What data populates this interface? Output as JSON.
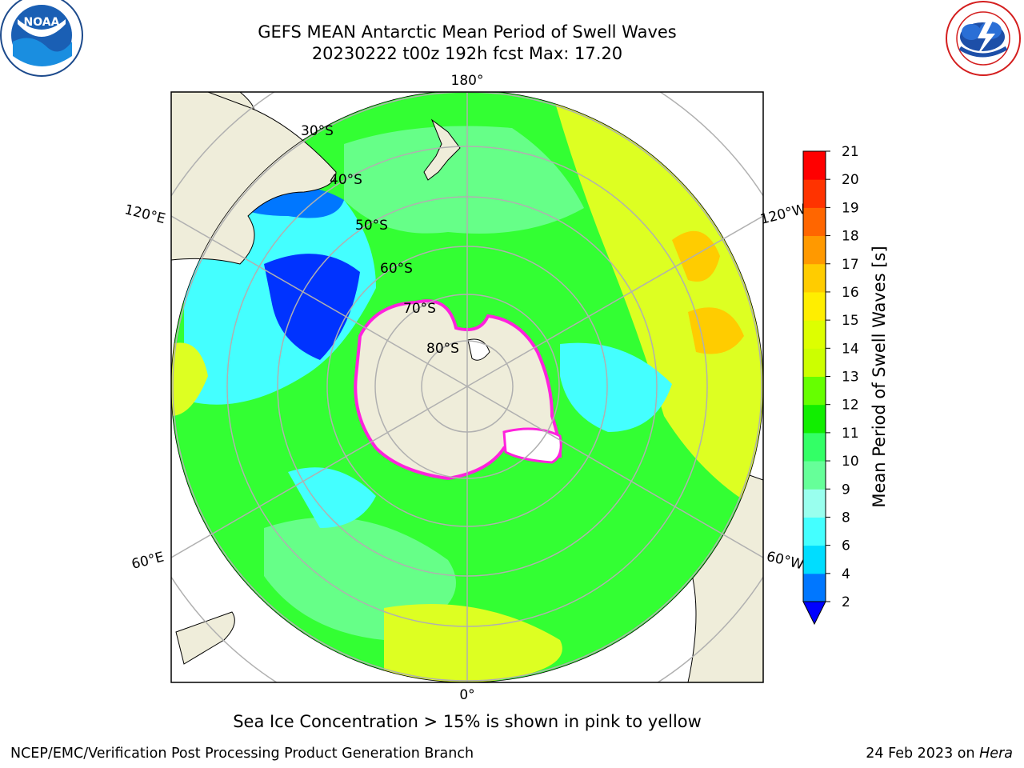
{
  "title": {
    "line1": "GEFS MEAN Antarctic Mean Period of Swell Waves",
    "line2": "20230222 t00z 192h fcst   Max: 17.20"
  },
  "logos": {
    "left": {
      "icon": "noaa-logo",
      "text": "NOAA"
    },
    "right": {
      "icon": "nws-logo",
      "text": "NATIONAL WEATHER SERVICE"
    }
  },
  "map": {
    "projection": "south-polar-stereographic",
    "longitude_labels": {
      "top": "180°",
      "bottom": "0°",
      "upper_left": "120°E",
      "upper_right": "120°W",
      "lower_left": "60°E",
      "lower_right": "60°W"
    },
    "latitude_labels": [
      "30°S",
      "40°S",
      "50°S",
      "60°S",
      "70°S",
      "80°S"
    ],
    "colors": {
      "ocean_field": "#33ff33",
      "land": "#efedda",
      "sea_ice_edge": "#ff00ff",
      "grid": "#b0b0b0"
    }
  },
  "colorbar": {
    "label": "Mean Period of Swell Waves [s]",
    "ticks": [
      "2",
      "4",
      "6",
      "8",
      "9",
      "10",
      "11",
      "12",
      "13",
      "14",
      "15",
      "16",
      "17",
      "18",
      "19",
      "20",
      "21"
    ],
    "colors": [
      "#0000ff",
      "#0077ff",
      "#00ddff",
      "#44ffff",
      "#99ffee",
      "#66ff99",
      "#33ff66",
      "#11ee00",
      "#66ff00",
      "#ccff00",
      "#ddff00",
      "#ffee00",
      "#ffcc00",
      "#ff9900",
      "#ff6600",
      "#ff3300",
      "#ff0000"
    ]
  },
  "caption": "Sea Ice Concentration > 15% is shown in pink to yellow",
  "footer": {
    "left": "NCEP/EMC/Verification Post Processing Product Generation Branch",
    "right_text": "24 Feb 2023 on ",
    "right_host": "Hera"
  }
}
